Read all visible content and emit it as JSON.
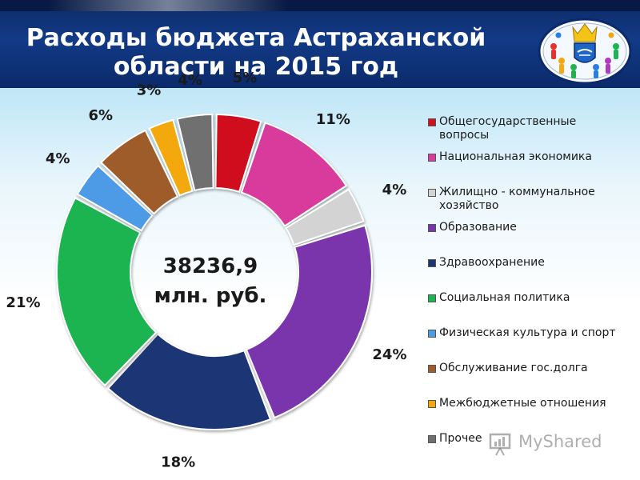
{
  "header": {
    "title_line1": "Расходы бюджета Астраханской",
    "title_line2": "области на 2015 год"
  },
  "emblem": {
    "icon": "astrakhan-emblem-icon"
  },
  "chart_data": {
    "type": "pie",
    "center_value": "38236,9",
    "center_unit": "млн. руб.",
    "categories": [
      "Общегосударственные вопросы",
      "Национальная экономика",
      "Жилищно - коммунальное хозяйство",
      "Образование",
      "Здравоохранение",
      "Социальная политика",
      "Физическая культура и спорт",
      "Обслуживание гос.долга",
      "Межбюджетные отношения",
      "Прочее"
    ],
    "values": [
      5,
      11,
      4,
      24,
      18,
      21,
      4,
      6,
      3,
      4
    ],
    "labels": [
      "5%",
      "11%",
      "4%",
      "24%",
      "18%",
      "21%",
      "4%",
      "6%",
      "3%",
      "4%"
    ],
    "colors": [
      "#d0101c",
      "#d93a9c",
      "#d3d3d3",
      "#7a35ad",
      "#1b3575",
      "#1cb351",
      "#4d9ae6",
      "#9e5b2c",
      "#f3a90d",
      "#6f6f6f"
    ],
    "legend": [
      {
        "line1": "Общегосударственные",
        "line2": "вопросы"
      },
      {
        "line1": "Национальная экономика",
        "line2": ""
      },
      {
        "line1": "Жилищно - коммунальное",
        "line2": "хозяйство"
      },
      {
        "line1": "Образование",
        "line2": ""
      },
      {
        "line1": "Здравоохранение",
        "line2": ""
      },
      {
        "line1": "Социальная политика",
        "line2": ""
      },
      {
        "line1": "Физическая культура и спорт",
        "line2": ""
      },
      {
        "line1": "Обслуживание гос.долга",
        "line2": ""
      },
      {
        "line1": "Межбюджетные отношения",
        "line2": ""
      },
      {
        "line1": "Прочее",
        "line2": ""
      }
    ],
    "legend_position": "right"
  },
  "watermark": {
    "text": "MyShared"
  }
}
